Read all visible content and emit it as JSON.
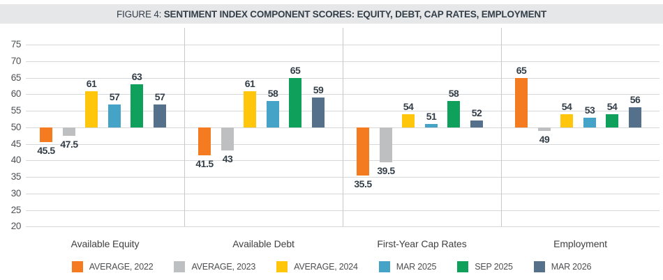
{
  "title": {
    "prefix": "FIGURE 4: ",
    "bold": "SENTIMENT INDEX COMPONENT SCORES: EQUITY, DEBT, CAP RATES, EMPLOYMENT"
  },
  "chart_data": {
    "type": "bar",
    "baseline": 50,
    "categories": [
      "Available Equity",
      "Available Debt",
      "First-Year Cap Rates",
      "Employment"
    ],
    "series": [
      {
        "name": "AVERAGE, 2022",
        "color": "#f47b20",
        "values": [
          45.5,
          41.5,
          35.5,
          65
        ]
      },
      {
        "name": "AVERAGE, 2023",
        "color": "#bdbfc1",
        "values": [
          47.5,
          43,
          39.5,
          49
        ]
      },
      {
        "name": "AVERAGE, 2024",
        "color": "#ffc60b",
        "values": [
          61,
          61,
          54,
          54
        ]
      },
      {
        "name": "MAR 2025",
        "color": "#44a3c7",
        "values": [
          57,
          58,
          51,
          53
        ]
      },
      {
        "name": "SEP 2025",
        "color": "#0fa15c",
        "values": [
          63,
          65,
          58,
          54
        ]
      },
      {
        "name": "MAR 2026",
        "color": "#54708b",
        "values": [
          57,
          59,
          52,
          56
        ]
      }
    ],
    "ylim": [
      20,
      75
    ],
    "yticks": [
      75,
      70,
      65,
      60,
      55,
      50,
      45,
      40,
      35,
      30,
      25,
      20
    ],
    "grid": true,
    "legend_position": "bottom",
    "data_labels": true
  },
  "style_colors": {
    "title_band_bg": "#e6e7e8",
    "title_text": "#333e48",
    "gridline": "#d6d7d8",
    "separator": "#c6c8ca",
    "value_label": "#333e48",
    "axis_text": "#4e4f52"
  }
}
